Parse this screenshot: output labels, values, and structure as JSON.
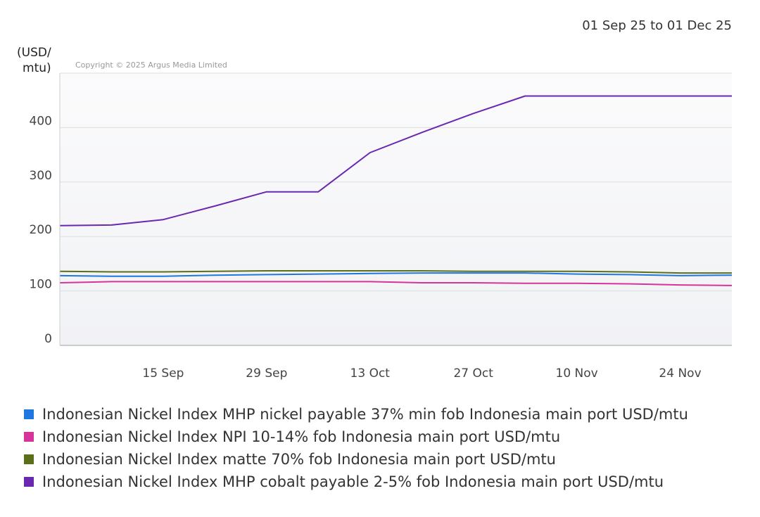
{
  "header": {
    "date_range": "01 Sep 25 to 01 Dec 25",
    "y_unit": [
      "(USD/",
      "mtu)"
    ],
    "copyright": "Copyright © 2025 Argus Media Limited"
  },
  "chart_data": {
    "type": "line",
    "x_range": [
      "2025-09-01",
      "2025-12-01"
    ],
    "ylim": [
      0,
      500
    ],
    "y_ticks": [
      0,
      100,
      200,
      300,
      400
    ],
    "x_ticks": [
      {
        "date": "2025-09-15",
        "label": "15 Sep"
      },
      {
        "date": "2025-09-29",
        "label": "29 Sep"
      },
      {
        "date": "2025-10-13",
        "label": "13 Oct"
      },
      {
        "date": "2025-10-27",
        "label": "27 Oct"
      },
      {
        "date": "2025-11-10",
        "label": "10 Nov"
      },
      {
        "date": "2025-11-24",
        "label": "24 Nov"
      }
    ],
    "grid": true,
    "legend_position": "bottom",
    "series": [
      {
        "name": "Indonesian Nickel Index MHP nickel payable 37% min fob Indonesia main port USD/mtu",
        "color": "#1f77e0",
        "points": [
          [
            "2025-09-01",
            128
          ],
          [
            "2025-09-08",
            127
          ],
          [
            "2025-09-15",
            127
          ],
          [
            "2025-09-22",
            129
          ],
          [
            "2025-09-29",
            130
          ],
          [
            "2025-10-06",
            131
          ],
          [
            "2025-10-13",
            132
          ],
          [
            "2025-10-20",
            133
          ],
          [
            "2025-10-27",
            133
          ],
          [
            "2025-11-03",
            133
          ],
          [
            "2025-11-10",
            131
          ],
          [
            "2025-11-17",
            130
          ],
          [
            "2025-11-24",
            128
          ],
          [
            "2025-12-01",
            129
          ]
        ]
      },
      {
        "name": "Indonesian Nickel Index NPI 10-14% fob Indonesia main port USD/mtu",
        "color": "#d6339b",
        "points": [
          [
            "2025-09-01",
            115
          ],
          [
            "2025-09-08",
            117
          ],
          [
            "2025-09-15",
            117
          ],
          [
            "2025-09-22",
            117
          ],
          [
            "2025-09-29",
            117
          ],
          [
            "2025-10-06",
            117
          ],
          [
            "2025-10-13",
            117
          ],
          [
            "2025-10-20",
            115
          ],
          [
            "2025-10-27",
            115
          ],
          [
            "2025-11-03",
            114
          ],
          [
            "2025-11-10",
            114
          ],
          [
            "2025-11-17",
            113
          ],
          [
            "2025-11-24",
            111
          ],
          [
            "2025-12-01",
            110
          ]
        ]
      },
      {
        "name": "Indonesian Nickel Index matte 70% fob Indonesia main port USD/mtu",
        "color": "#5a6e1b",
        "points": [
          [
            "2025-09-01",
            136
          ],
          [
            "2025-09-08",
            135
          ],
          [
            "2025-09-15",
            135
          ],
          [
            "2025-09-22",
            136
          ],
          [
            "2025-09-29",
            137
          ],
          [
            "2025-10-06",
            137
          ],
          [
            "2025-10-13",
            137
          ],
          [
            "2025-10-20",
            137
          ],
          [
            "2025-10-27",
            136
          ],
          [
            "2025-11-03",
            136
          ],
          [
            "2025-11-10",
            136
          ],
          [
            "2025-11-17",
            135
          ],
          [
            "2025-11-24",
            133
          ],
          [
            "2025-12-01",
            133
          ]
        ]
      },
      {
        "name": "Indonesian Nickel Index MHP cobalt payable 2-5% fob Indonesia main port USD/mtu",
        "color": "#6a28b0",
        "points": [
          [
            "2025-09-01",
            220
          ],
          [
            "2025-09-08",
            221
          ],
          [
            "2025-09-15",
            231
          ],
          [
            "2025-09-22",
            256
          ],
          [
            "2025-09-29",
            282
          ],
          [
            "2025-10-06",
            282
          ],
          [
            "2025-10-13",
            354
          ],
          [
            "2025-10-20",
            391
          ],
          [
            "2025-10-27",
            426
          ],
          [
            "2025-11-03",
            458
          ],
          [
            "2025-11-10",
            458
          ],
          [
            "2025-11-17",
            458
          ],
          [
            "2025-11-24",
            458
          ],
          [
            "2025-12-01",
            458
          ]
        ]
      }
    ]
  }
}
